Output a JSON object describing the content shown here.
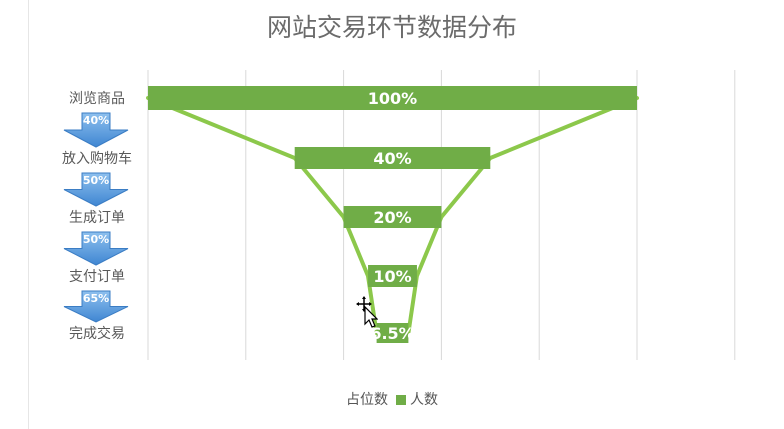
{
  "chart_data": {
    "type": "bar",
    "title": "网站交易环节数据分布",
    "categories": [
      "浏览商品",
      "放入购物车",
      "生成订单",
      "支付订单",
      "完成交易"
    ],
    "series": [
      {
        "name": "占位数",
        "values": [
          0,
          30,
          40,
          45,
          46.75
        ],
        "visible": false
      },
      {
        "name": "人数",
        "values": [
          100,
          40,
          20,
          10,
          6.5
        ]
      }
    ],
    "data_labels": [
      "100%",
      "40%",
      "20%",
      "10%",
      "6.5%"
    ],
    "conversion_rates": [
      "40%",
      "50%",
      "50%",
      "65%"
    ],
    "xlim": [
      0,
      100
    ],
    "grid": true,
    "legend": "bottom",
    "colors": {
      "bar": "#70ad47",
      "funnel_line": "#8cc84b",
      "arrow": "#4a90d9",
      "gridline": "#d9d9d9",
      "text": "#595959"
    }
  }
}
